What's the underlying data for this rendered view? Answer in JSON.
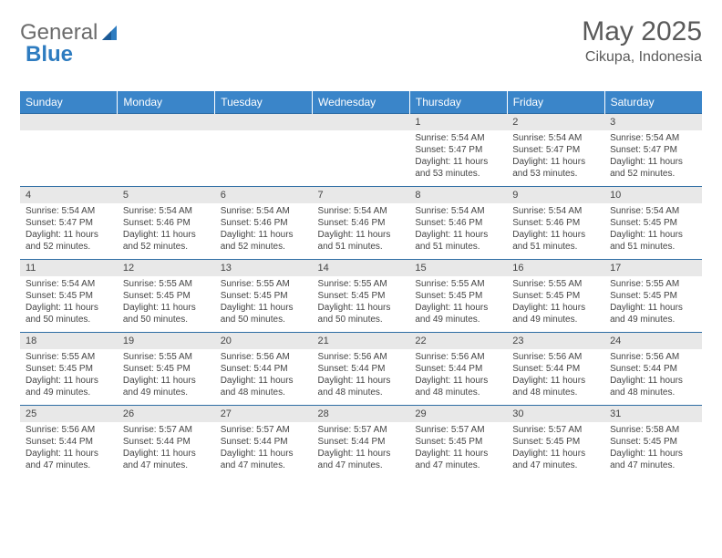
{
  "logo": {
    "text1": "General",
    "text2": "Blue"
  },
  "title": "May 2025",
  "location": "Cikupa, Indonesia",
  "colors": {
    "header_bg": "#3a85c9",
    "header_text": "#ffffff",
    "day_bar_bg": "#e8e8e8",
    "border": "#2e6da4",
    "text": "#444444",
    "logo_gray": "#6b6b6b",
    "logo_blue": "#2e7cc0"
  },
  "columns": [
    "Sunday",
    "Monday",
    "Tuesday",
    "Wednesday",
    "Thursday",
    "Friday",
    "Saturday"
  ],
  "weeks": [
    {
      "nums": [
        "",
        "",
        "",
        "",
        "1",
        "2",
        "3"
      ],
      "cells": [
        null,
        null,
        null,
        null,
        {
          "sr": "5:54 AM",
          "ss": "5:47 PM",
          "dl": "11 hours and 53 minutes."
        },
        {
          "sr": "5:54 AM",
          "ss": "5:47 PM",
          "dl": "11 hours and 53 minutes."
        },
        {
          "sr": "5:54 AM",
          "ss": "5:47 PM",
          "dl": "11 hours and 52 minutes."
        }
      ]
    },
    {
      "nums": [
        "4",
        "5",
        "6",
        "7",
        "8",
        "9",
        "10"
      ],
      "cells": [
        {
          "sr": "5:54 AM",
          "ss": "5:47 PM",
          "dl": "11 hours and 52 minutes."
        },
        {
          "sr": "5:54 AM",
          "ss": "5:46 PM",
          "dl": "11 hours and 52 minutes."
        },
        {
          "sr": "5:54 AM",
          "ss": "5:46 PM",
          "dl": "11 hours and 52 minutes."
        },
        {
          "sr": "5:54 AM",
          "ss": "5:46 PM",
          "dl": "11 hours and 51 minutes."
        },
        {
          "sr": "5:54 AM",
          "ss": "5:46 PM",
          "dl": "11 hours and 51 minutes."
        },
        {
          "sr": "5:54 AM",
          "ss": "5:46 PM",
          "dl": "11 hours and 51 minutes."
        },
        {
          "sr": "5:54 AM",
          "ss": "5:45 PM",
          "dl": "11 hours and 51 minutes."
        }
      ]
    },
    {
      "nums": [
        "11",
        "12",
        "13",
        "14",
        "15",
        "16",
        "17"
      ],
      "cells": [
        {
          "sr": "5:54 AM",
          "ss": "5:45 PM",
          "dl": "11 hours and 50 minutes."
        },
        {
          "sr": "5:55 AM",
          "ss": "5:45 PM",
          "dl": "11 hours and 50 minutes."
        },
        {
          "sr": "5:55 AM",
          "ss": "5:45 PM",
          "dl": "11 hours and 50 minutes."
        },
        {
          "sr": "5:55 AM",
          "ss": "5:45 PM",
          "dl": "11 hours and 50 minutes."
        },
        {
          "sr": "5:55 AM",
          "ss": "5:45 PM",
          "dl": "11 hours and 49 minutes."
        },
        {
          "sr": "5:55 AM",
          "ss": "5:45 PM",
          "dl": "11 hours and 49 minutes."
        },
        {
          "sr": "5:55 AM",
          "ss": "5:45 PM",
          "dl": "11 hours and 49 minutes."
        }
      ]
    },
    {
      "nums": [
        "18",
        "19",
        "20",
        "21",
        "22",
        "23",
        "24"
      ],
      "cells": [
        {
          "sr": "5:55 AM",
          "ss": "5:45 PM",
          "dl": "11 hours and 49 minutes."
        },
        {
          "sr": "5:55 AM",
          "ss": "5:45 PM",
          "dl": "11 hours and 49 minutes."
        },
        {
          "sr": "5:56 AM",
          "ss": "5:44 PM",
          "dl": "11 hours and 48 minutes."
        },
        {
          "sr": "5:56 AM",
          "ss": "5:44 PM",
          "dl": "11 hours and 48 minutes."
        },
        {
          "sr": "5:56 AM",
          "ss": "5:44 PM",
          "dl": "11 hours and 48 minutes."
        },
        {
          "sr": "5:56 AM",
          "ss": "5:44 PM",
          "dl": "11 hours and 48 minutes."
        },
        {
          "sr": "5:56 AM",
          "ss": "5:44 PM",
          "dl": "11 hours and 48 minutes."
        }
      ]
    },
    {
      "nums": [
        "25",
        "26",
        "27",
        "28",
        "29",
        "30",
        "31"
      ],
      "cells": [
        {
          "sr": "5:56 AM",
          "ss": "5:44 PM",
          "dl": "11 hours and 47 minutes."
        },
        {
          "sr": "5:57 AM",
          "ss": "5:44 PM",
          "dl": "11 hours and 47 minutes."
        },
        {
          "sr": "5:57 AM",
          "ss": "5:44 PM",
          "dl": "11 hours and 47 minutes."
        },
        {
          "sr": "5:57 AM",
          "ss": "5:44 PM",
          "dl": "11 hours and 47 minutes."
        },
        {
          "sr": "5:57 AM",
          "ss": "5:45 PM",
          "dl": "11 hours and 47 minutes."
        },
        {
          "sr": "5:57 AM",
          "ss": "5:45 PM",
          "dl": "11 hours and 47 minutes."
        },
        {
          "sr": "5:58 AM",
          "ss": "5:45 PM",
          "dl": "11 hours and 47 minutes."
        }
      ]
    }
  ],
  "labels": {
    "sunrise": "Sunrise:",
    "sunset": "Sunset:",
    "daylight": "Daylight:"
  }
}
